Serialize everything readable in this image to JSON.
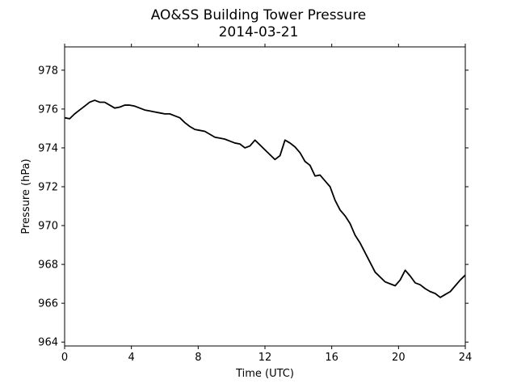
{
  "chart_data": {
    "type": "line",
    "title": "AO&SS Building Tower Pressure",
    "subtitle": "2014-03-21",
    "xlabel": "Time (UTC)",
    "ylabel": "Pressure (hPa)",
    "xlim": [
      0,
      24
    ],
    "ylim": [
      963.8,
      979.2
    ],
    "xticks": [
      0,
      4,
      8,
      12,
      16,
      20,
      24
    ],
    "yticks": [
      964,
      966,
      968,
      970,
      972,
      974,
      976,
      978
    ],
    "grid": false,
    "line_color": "#000000",
    "series": [
      {
        "x": [
          0,
          0.3,
          0.6,
          0.9,
          1.2,
          1.5,
          1.8,
          2.1,
          2.4,
          2.7,
          3.0,
          3.3,
          3.6,
          3.9,
          4.2,
          4.5,
          4.8,
          5.1,
          5.4,
          5.7,
          6.0,
          6.3,
          6.6,
          6.9,
          7.2,
          7.5,
          7.8,
          8.1,
          8.4,
          8.7,
          9.0,
          9.3,
          9.6,
          9.9,
          10.2,
          10.5,
          10.8,
          11.1,
          11.4,
          11.7,
          12.0,
          12.3,
          12.6,
          12.9,
          13.2,
          13.5,
          13.8,
          14.1,
          14.4,
          14.7,
          15.0,
          15.3,
          15.6,
          15.9,
          16.2,
          16.5,
          16.8,
          17.1,
          17.4,
          17.7,
          18.0,
          18.3,
          18.6,
          18.9,
          19.2,
          19.5,
          19.8,
          20.1,
          20.4,
          20.7,
          21.0,
          21.3,
          21.6,
          21.9,
          22.2,
          22.5,
          22.8,
          23.1,
          23.4,
          23.7,
          24.0
        ],
        "values": [
          975.55,
          975.5,
          975.75,
          975.95,
          976.15,
          976.35,
          976.45,
          976.35,
          976.35,
          976.2,
          976.05,
          976.1,
          976.2,
          976.2,
          976.15,
          976.05,
          975.95,
          975.9,
          975.85,
          975.8,
          975.75,
          975.75,
          975.65,
          975.55,
          975.3,
          975.1,
          974.95,
          974.9,
          974.85,
          974.7,
          974.55,
          974.5,
          974.45,
          974.35,
          974.25,
          974.2,
          974.0,
          974.1,
          974.4,
          974.15,
          973.9,
          973.65,
          973.4,
          973.6,
          974.4,
          974.25,
          974.05,
          973.75,
          973.3,
          973.1,
          972.55,
          972.6,
          972.3,
          972.0,
          971.3,
          970.8,
          970.5,
          970.1,
          969.5,
          969.1,
          968.6,
          968.1,
          967.6,
          967.35,
          967.1,
          967.0,
          966.9,
          967.2,
          967.7,
          967.4,
          967.05,
          966.95,
          966.75,
          966.6,
          966.5,
          966.3,
          966.45,
          966.6,
          966.9,
          967.2,
          967.45
        ]
      }
    ]
  }
}
